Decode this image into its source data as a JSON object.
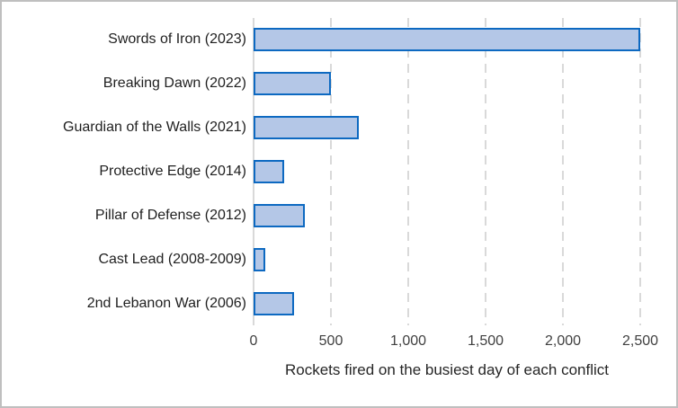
{
  "window": {
    "background": "#FFFFFF",
    "border_color": "#BFBFBF"
  },
  "chart_data": {
    "type": "bar",
    "orientation": "horizontal",
    "title": "",
    "xlabel": "Rockets fired on the busiest day of each conflict",
    "ylabel": "",
    "categories": [
      "Swords of Iron (2023)",
      "Breaking Dawn (2022)",
      "Guardian of the Walls (2021)",
      "Protective Edge (2014)",
      "Pillar of Defense (2012)",
      "Cast Lead (2008-2009)",
      "2nd Lebanon War (2006)"
    ],
    "values": [
      2500,
      500,
      680,
      200,
      330,
      75,
      260
    ],
    "xlim": [
      0,
      2500
    ],
    "xticks": [
      0,
      500,
      1000,
      1500,
      2000,
      2500
    ],
    "xtick_labels": [
      "0",
      "500",
      "1,000",
      "1,500",
      "2,000",
      "2,500"
    ],
    "grid": "vertical-dashed",
    "legend": "none",
    "colors": {
      "bar_fill": "#B4C7E7",
      "bar_border": "#0D69C1",
      "gridline": "#D9D9D9",
      "axis_line": "#D9D9D9",
      "label_text": "#1F1F1F",
      "tick_text": "#404040"
    }
  }
}
